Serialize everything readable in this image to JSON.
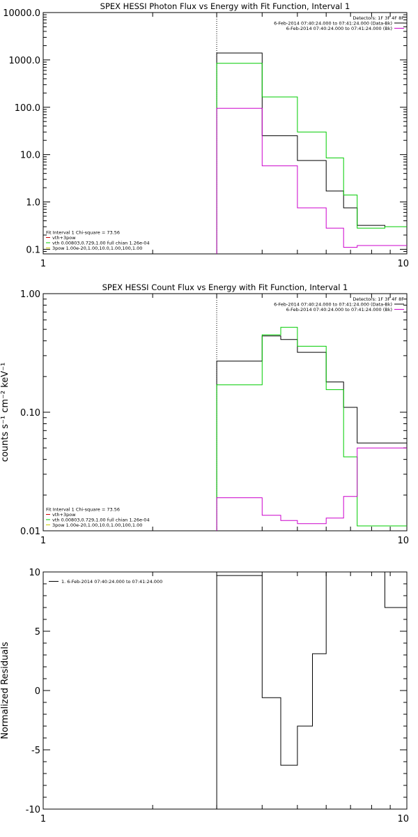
{
  "chart_data": [
    {
      "type": "line",
      "title": "SPEX HESSI Photon Flux vs Energy with Fit Function, Interval 1",
      "xlabel": "",
      "ylabel": "",
      "xscale": "log",
      "yscale": "log",
      "xlim": [
        1,
        10
      ],
      "ylim": [
        0.08,
        10000
      ],
      "x_ticks": [
        {
          "v": 1,
          "label": "1"
        },
        {
          "v": 10,
          "label": "10"
        }
      ],
      "y_ticks": [
        {
          "v": 0.1,
          "label": "0.1"
        },
        {
          "v": 1,
          "label": "1.0"
        },
        {
          "v": 10,
          "label": "10.0"
        },
        {
          "v": 100,
          "label": "100.0"
        },
        {
          "v": 1000,
          "label": "1000.0"
        },
        {
          "v": 10000,
          "label": "10000.0"
        }
      ],
      "vline_x": 3,
      "edges": [
        3,
        3.5,
        4,
        4.5,
        5,
        5.5,
        6,
        6.7,
        7.3,
        8.0,
        8.7,
        9.5,
        10.0
      ],
      "series": [
        {
          "color": "#000000",
          "values": [
            1400,
            1400,
            25,
            25,
            7.5,
            7.5,
            1.7,
            0.75,
            0.32,
            0.32,
            0.3,
            0.3
          ]
        },
        {
          "color": "#00cc00",
          "values": [
            850,
            850,
            165,
            165,
            30,
            30,
            8.5,
            1.4,
            0.28,
            0.28,
            0.3,
            0.3
          ]
        },
        {
          "color": "#cc00cc",
          "values": [
            95,
            95,
            5.8,
            5.8,
            0.75,
            0.75,
            0.28,
            0.11,
            0.12,
            0.12,
            0.12,
            0.12
          ]
        }
      ],
      "legend_top": {
        "position": "top-right",
        "header": "Detectors: 1F 3F 4F 8F",
        "entries": [
          {
            "text": "6-Feb-2014 07:40:24.000 to 07:41:24.000 (Data-Bk)",
            "color": "#000000"
          },
          {
            "text": "6-Feb-2014 07:40:24.000 to 07:41:24.000 (Bk)",
            "color": "#cc00cc"
          }
        ]
      },
      "legend_bottom": {
        "position": "bottom-left",
        "header": "Fit Interval 1   Chi-square = 73.56",
        "entries": [
          {
            "text": "vth+3pow",
            "color": "#cc0000"
          },
          {
            "text": "vth 0.00803,0.729,1.00  full chian 1.26e-04",
            "color": "#00cc00"
          },
          {
            "text": "3pow 1.00e-20,1.00,10.0,1.00,100,1.00",
            "color": "#cccc00"
          }
        ]
      }
    },
    {
      "type": "line",
      "title": "SPEX HESSI Count Flux vs Energy with Fit Function, Interval 1",
      "xlabel": "",
      "ylabel": "counts s⁻¹ cm⁻² keV⁻¹",
      "xscale": "log",
      "yscale": "log",
      "xlim": [
        1,
        10
      ],
      "ylim": [
        0.01,
        1
      ],
      "x_ticks": [
        {
          "v": 1,
          "label": "1"
        },
        {
          "v": 10,
          "label": "10"
        }
      ],
      "y_ticks": [
        {
          "v": 0.01,
          "label": "0.01"
        },
        {
          "v": 0.1,
          "label": "0.10"
        },
        {
          "v": 1,
          "label": "1.00"
        }
      ],
      "vline_x": 3,
      "edges": [
        3,
        3.5,
        4,
        4.5,
        5,
        5.5,
        6,
        6.7,
        7.3,
        8.0,
        8.7,
        9.5,
        10.0
      ],
      "series": [
        {
          "color": "#000000",
          "values": [
            0.27,
            0.27,
            0.44,
            0.41,
            0.32,
            0.32,
            0.18,
            0.11,
            0.055,
            0.055,
            0.055,
            0.055
          ]
        },
        {
          "color": "#00cc00",
          "values": [
            0.17,
            0.17,
            0.45,
            0.52,
            0.36,
            0.36,
            0.155,
            0.042,
            0.011,
            0.011,
            0.011,
            0.011
          ]
        },
        {
          "color": "#cc00cc",
          "values": [
            0.019,
            0.019,
            0.0135,
            0.0122,
            0.0115,
            0.0115,
            0.0128,
            0.0195,
            0.05,
            0.05,
            0.05,
            0.05
          ]
        }
      ],
      "legend_top": {
        "position": "top-right",
        "header": "Detectors: 1F 3F 4F 8F",
        "entries": [
          {
            "text": "6-Feb-2014 07:40:24.000 to 07:41:24.000 (Data-Bk)",
            "color": "#000000"
          },
          {
            "text": "6-Feb-2014 07:40:24.000 to 07:41:24.000 (Bk)",
            "color": "#cc00cc"
          }
        ]
      },
      "legend_bottom": {
        "position": "bottom-left",
        "header": "Fit Interval 1   Chi-square = 73.56",
        "entries": [
          {
            "text": "vth+3pow",
            "color": "#cc0000"
          },
          {
            "text": "vth 0.00803,0.729,1.00  full chian 1.26e-04",
            "color": "#00cc00"
          },
          {
            "text": "3pow 1.00e-20,1.00,10.0,1.00,100,1.00",
            "color": "#cccc00"
          }
        ]
      }
    },
    {
      "type": "line",
      "title": "",
      "xlabel": "",
      "ylabel": "Normalized Residuals",
      "xscale": "log",
      "yscale": "linear",
      "xlim": [
        1,
        10
      ],
      "ylim": [
        -10,
        10
      ],
      "x_ticks": [
        {
          "v": 1,
          "label": "1"
        },
        {
          "v": 10,
          "label": "10"
        }
      ],
      "y_ticks": [
        {
          "v": -10,
          "label": "-10"
        },
        {
          "v": -5,
          "label": "-5"
        },
        {
          "v": 0,
          "label": "0"
        },
        {
          "v": 5,
          "label": "5"
        },
        {
          "v": 10,
          "label": "10"
        }
      ],
      "edges": [
        3,
        4,
        4.5,
        5,
        5.5,
        6,
        6.7,
        7.3,
        8.0,
        8.7,
        9.5,
        10.0
      ],
      "series": [
        {
          "color": "#000000",
          "values": [
            9.7,
            -0.6,
            -6.3,
            -3.0,
            3.1,
            10,
            10,
            10,
            10,
            7.0,
            7.0
          ]
        }
      ],
      "legend_top": {
        "position": "top-left",
        "header": "",
        "entries": [
          {
            "text": "1.  6-Feb-2014 07:40:24.000 to 07:41:24.000",
            "color": "#000000"
          }
        ]
      }
    }
  ]
}
